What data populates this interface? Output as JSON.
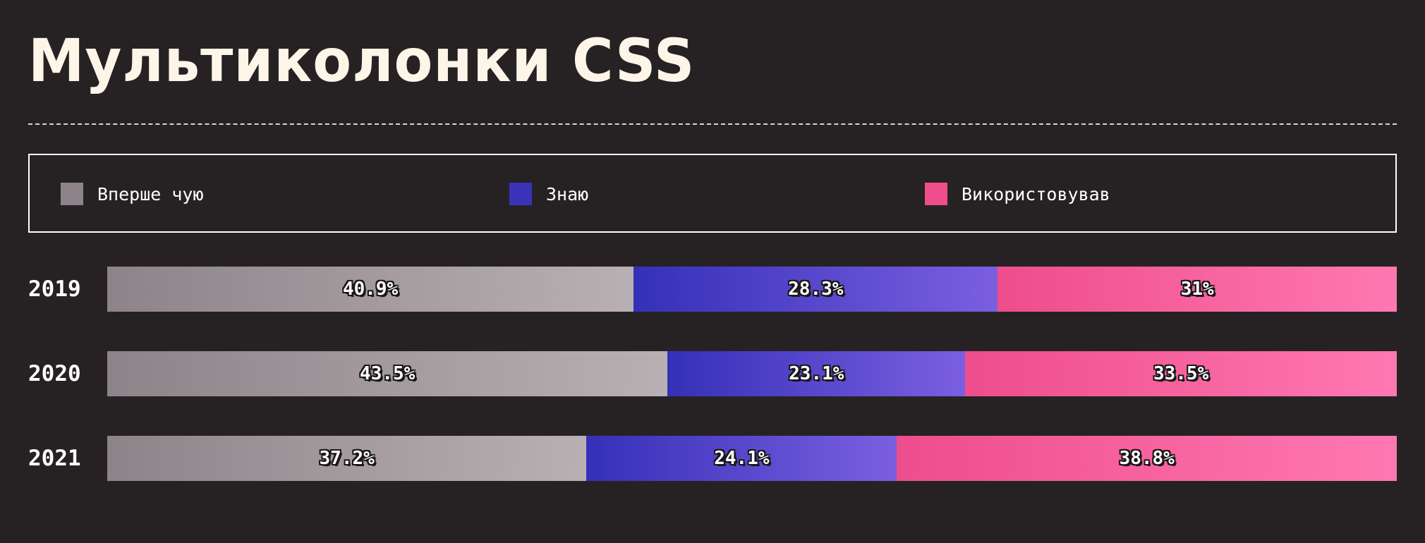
{
  "title": "Мультиколонки CSS",
  "chart_data": {
    "type": "bar",
    "orientation": "horizontal",
    "stacked": true,
    "title": "Мультиколонки CSS",
    "categories": [
      "2019",
      "2020",
      "2021"
    ],
    "value_format": "percent",
    "legend_placement": "top",
    "grid": false,
    "series": [
      {
        "name": "Вперше чую",
        "color": "#8c8489",
        "values": [
          40.9,
          43.5,
          37.2
        ],
        "labels": [
          "40.9%",
          "43.5%",
          "37.2%"
        ]
      },
      {
        "name": "Знаю",
        "color": "#3a33b8",
        "values": [
          28.3,
          23.1,
          24.1
        ],
        "labels": [
          "28.3%",
          "23.1%",
          "24.1%"
        ]
      },
      {
        "name": "Використовував",
        "color": "#ef4d8b",
        "values": [
          31,
          33.5,
          38.8
        ],
        "labels": [
          "31%",
          "33.5%",
          "38.8%"
        ]
      }
    ]
  }
}
